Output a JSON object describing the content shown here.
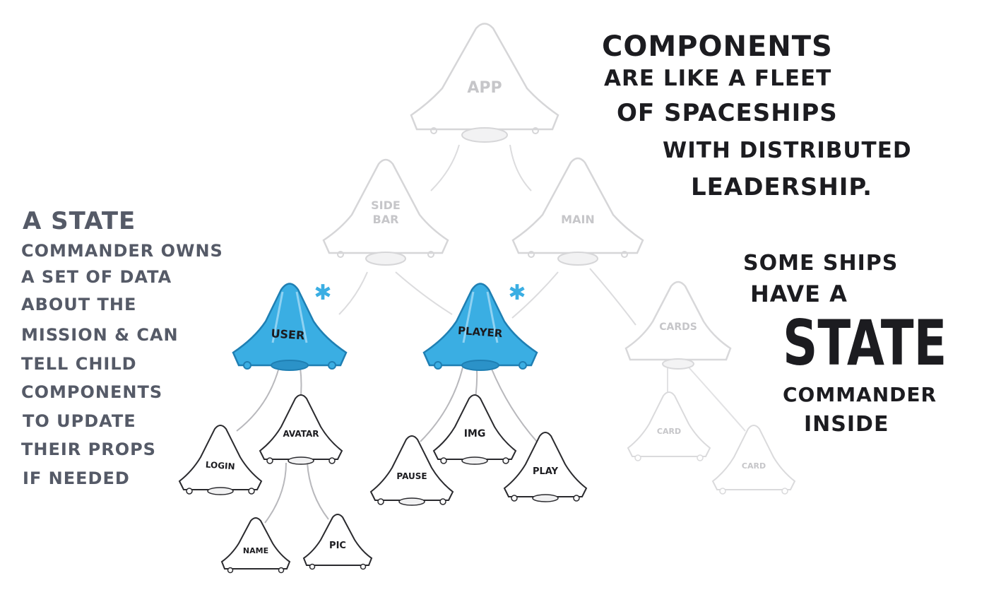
{
  "ships": {
    "app": "APP",
    "sidebar": [
      "SIDE",
      "BAR"
    ],
    "main": "MAIN",
    "user": "USER",
    "player": "PLAYER",
    "cards": "CARDS",
    "login": "LOGIN",
    "avatar": "AVATAR",
    "name": "NAME",
    "pic": "PIC",
    "pause": "PAUSE",
    "img": "IMG",
    "play": "PLAY",
    "card1": "CARD",
    "card2": "CARD"
  },
  "heading": {
    "lines": [
      "COMPONENTS",
      "ARE LIKE A FLEET",
      "OF SPACESHIPS",
      "WITH DISTRIBUTED",
      "LEADERSHIP."
    ]
  },
  "left_note": {
    "lines": [
      "A STATE",
      "COMMANDER OWNS",
      "A SET OF DATA",
      "ABOUT THE",
      "MISSION & CAN",
      "TELL CHILD",
      "COMPONENTS",
      "TO UPDATE",
      "THEIR PROPS",
      "IF NEEDED"
    ]
  },
  "right_note": {
    "line1": "SOME SHIPS",
    "line2": "HAVE A",
    "big": "STATE",
    "line3": "COMMANDER",
    "line4": "INSIDE"
  },
  "colors": {
    "accent": "#3aaee3",
    "accent_dark": "#1f7fb3",
    "ink": "#1c1c20",
    "slate": "#555a67",
    "faded": "#d4d4d6"
  }
}
